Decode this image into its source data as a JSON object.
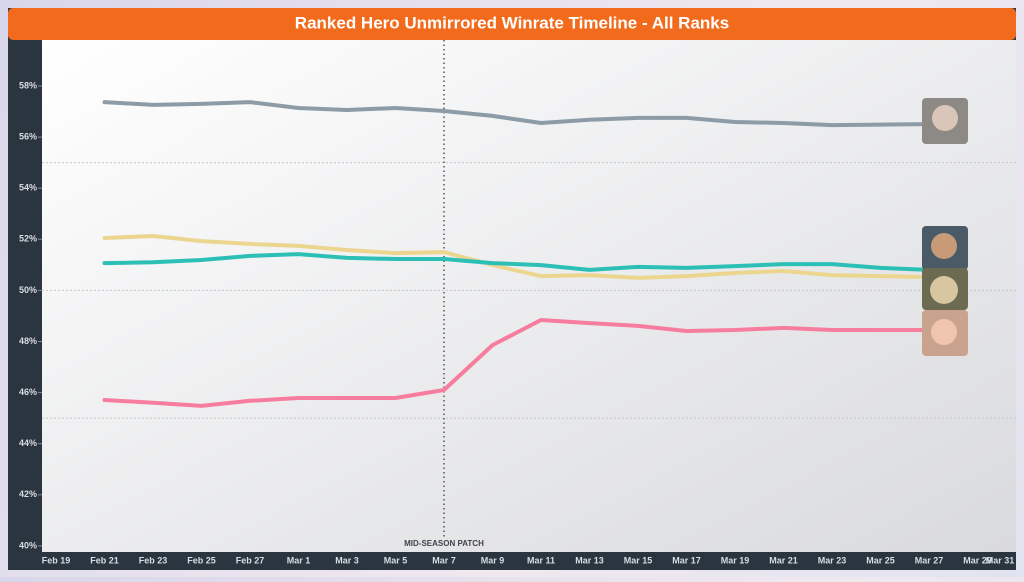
{
  "chart_data": {
    "type": "line",
    "title": "Ranked Hero Unmirrored Winrate Timeline - All Ranks",
    "categories": [
      "Feb 19",
      "Feb 21",
      "Feb 23",
      "Feb 25",
      "Feb 27",
      "Mar 1",
      "Mar 3",
      "Mar 5",
      "Mar 7",
      "Mar 9",
      "Mar 11",
      "Mar 13",
      "Mar 15",
      "Mar 17",
      "Mar 19",
      "Mar 21",
      "Mar 23",
      "Mar 25",
      "Mar 27",
      "Mar 29",
      "Mar 31"
    ],
    "series": [
      {
        "color": "#8c9ba5",
        "values": [
          null,
          57.37,
          57.26,
          57.3,
          57.37,
          57.14,
          57.06,
          57.14,
          57.02,
          56.83,
          56.55,
          56.68,
          56.75,
          56.75,
          56.59,
          56.55,
          56.47,
          56.49,
          56.51,
          null,
          null
        ]
      },
      {
        "color": "#ecd68f",
        "values": [
          null,
          52.05,
          52.13,
          51.93,
          51.82,
          51.74,
          51.58,
          51.46,
          51.5,
          50.99,
          50.56,
          50.6,
          50.49,
          50.56,
          50.68,
          50.76,
          50.6,
          50.56,
          50.52,
          null,
          null
        ]
      },
      {
        "color": "#2cbfb5",
        "values": [
          null,
          51.07,
          51.1,
          51.19,
          51.35,
          51.42,
          51.27,
          51.23,
          51.23,
          51.07,
          50.99,
          50.8,
          50.92,
          50.88,
          50.95,
          51.03,
          51.03,
          50.88,
          50.8,
          null,
          null
        ]
      },
      {
        "color": "#f77d9e",
        "values": [
          null,
          45.71,
          45.6,
          45.48,
          45.68,
          45.79,
          45.79,
          45.79,
          46.1,
          47.86,
          48.84,
          48.72,
          48.61,
          48.41,
          48.45,
          48.53,
          48.45,
          48.45,
          48.45,
          null,
          null
        ]
      }
    ],
    "ylim": [
      39.8,
      59.8
    ],
    "yticks": [
      {
        "value": 40,
        "label": "40%"
      },
      {
        "value": 42,
        "label": "42%"
      },
      {
        "value": 44,
        "label": "44%"
      },
      {
        "value": 46,
        "label": "46%"
      },
      {
        "value": 48,
        "label": "48%"
      },
      {
        "value": 50,
        "label": "50%"
      },
      {
        "value": 52,
        "label": "52%"
      },
      {
        "value": 54,
        "label": "54%"
      },
      {
        "value": 56,
        "label": "56%"
      },
      {
        "value": 58,
        "label": "58%"
      }
    ],
    "reference_lines": [
      55,
      50,
      45
    ],
    "annotation": {
      "text": "MID-SEASON PATCH",
      "category_index": 8
    }
  }
}
